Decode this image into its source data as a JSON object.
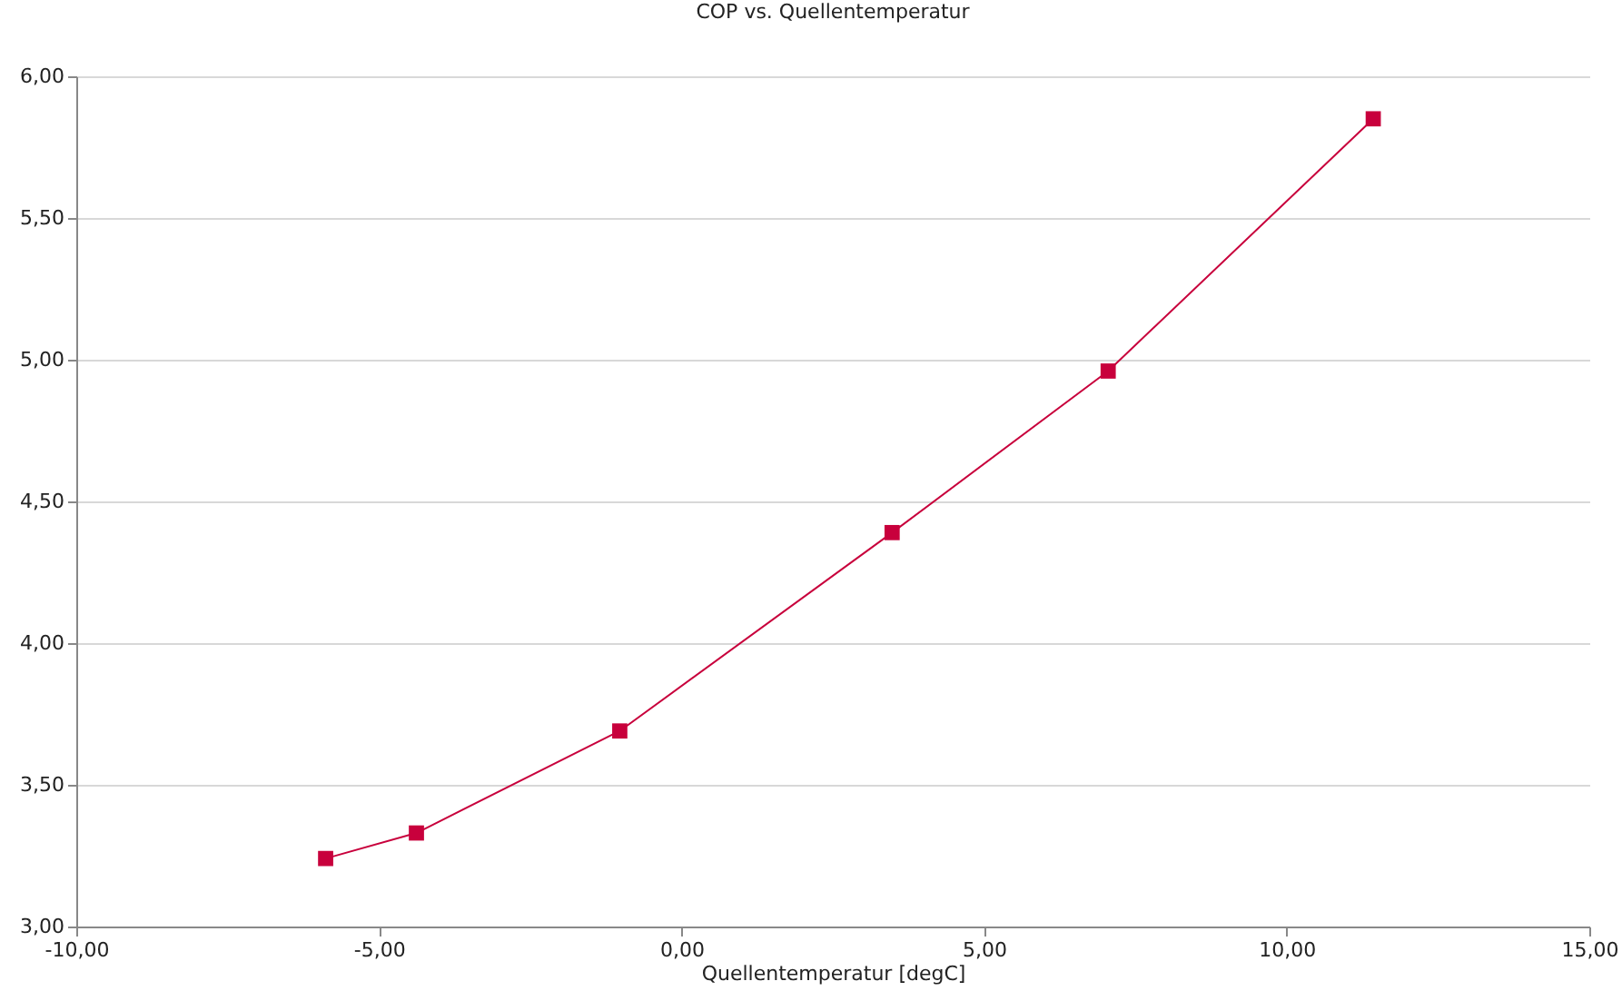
{
  "chart_data": {
    "type": "line",
    "title": "COP vs. Quellentemperatur",
    "xlabel": "Quellentemperatur [degC]",
    "x": [
      -5.88,
      -4.38,
      -1.02,
      3.48,
      7.05,
      11.43
    ],
    "series": [
      {
        "color": "#c8003c",
        "values": [
          3.24,
          3.33,
          3.69,
          4.39,
          4.96,
          5.85
        ]
      }
    ],
    "xlim": [
      -10,
      15
    ],
    "xticks": [
      {
        "value": -10,
        "label": "-10,00"
      },
      {
        "value": -5,
        "label": "-5,00"
      },
      {
        "value": 0,
        "label": "0,00"
      },
      {
        "value": 5,
        "label": "5,00"
      },
      {
        "value": 10,
        "label": "10,00"
      },
      {
        "value": 15,
        "label": "15,00"
      }
    ],
    "ylim": [
      3,
      6
    ],
    "yticks": [
      {
        "value": 3,
        "label": "3,00"
      },
      {
        "value": 3.5,
        "label": "3,50"
      },
      {
        "value": 4,
        "label": "4,00"
      },
      {
        "value": 4.5,
        "label": "4,50"
      },
      {
        "value": 5,
        "label": "5,00"
      },
      {
        "value": 5.5,
        "label": "5,50"
      },
      {
        "value": 6,
        "label": "6,00"
      }
    ],
    "grid": "y",
    "marker": "square",
    "line_style": "solid"
  }
}
